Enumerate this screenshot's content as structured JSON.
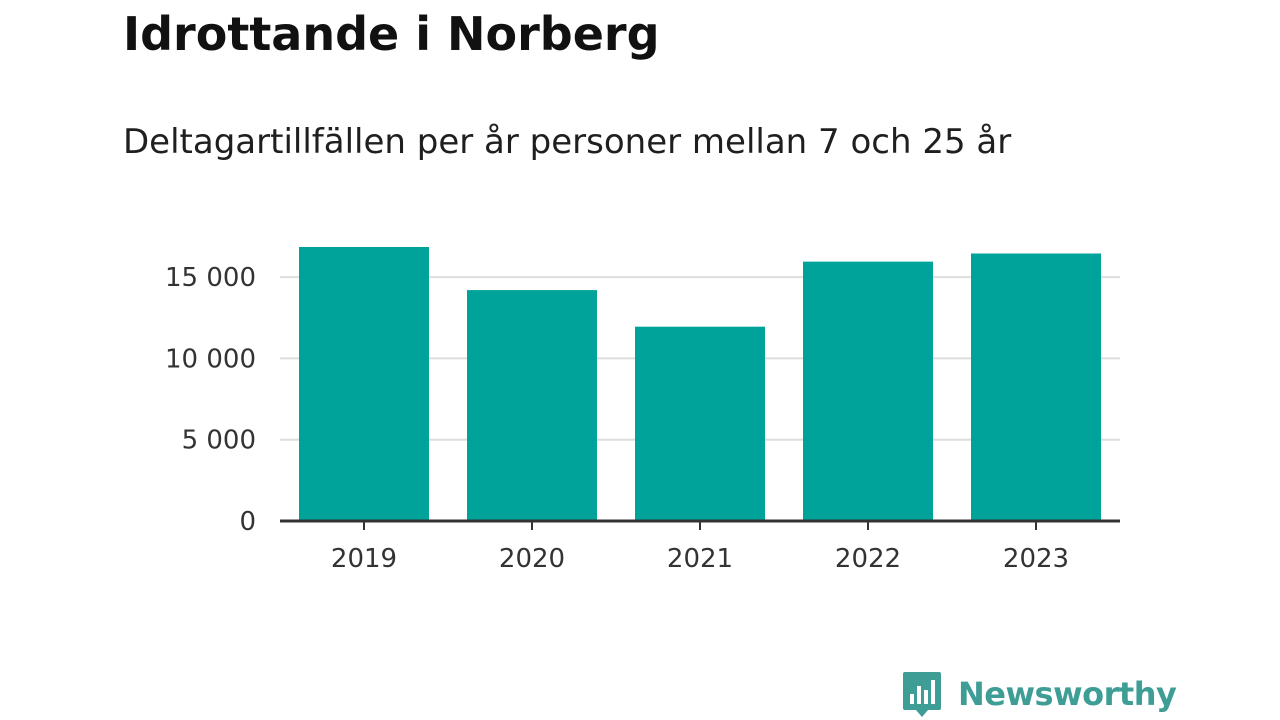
{
  "header": {
    "title": "Idrottande i Norberg",
    "subtitle": "Deltagartillfällen per år personer mellan 7 och 25 år"
  },
  "chart_data": {
    "type": "bar",
    "title": "Idrottande i Norberg",
    "subtitle": "Deltagartillfällen per år personer mellan 7 och 25 år",
    "xlabel": "",
    "ylabel": "",
    "categories": [
      "2019",
      "2020",
      "2021",
      "2022",
      "2023"
    ],
    "values": [
      16850,
      14200,
      11950,
      15950,
      16450
    ],
    "ylim": [
      0,
      16850
    ],
    "yticks": [
      0,
      5000,
      10000,
      15000
    ],
    "ytick_labels": [
      "0",
      "5 000",
      "10 000",
      "15 000"
    ],
    "grid": true,
    "legend": "none",
    "bar_color": "#00a399"
  },
  "branding": {
    "logo_text": "Newsworthy",
    "logo_icon": "bar-chart-speech-bubble-icon",
    "color": "#3e9d94"
  }
}
